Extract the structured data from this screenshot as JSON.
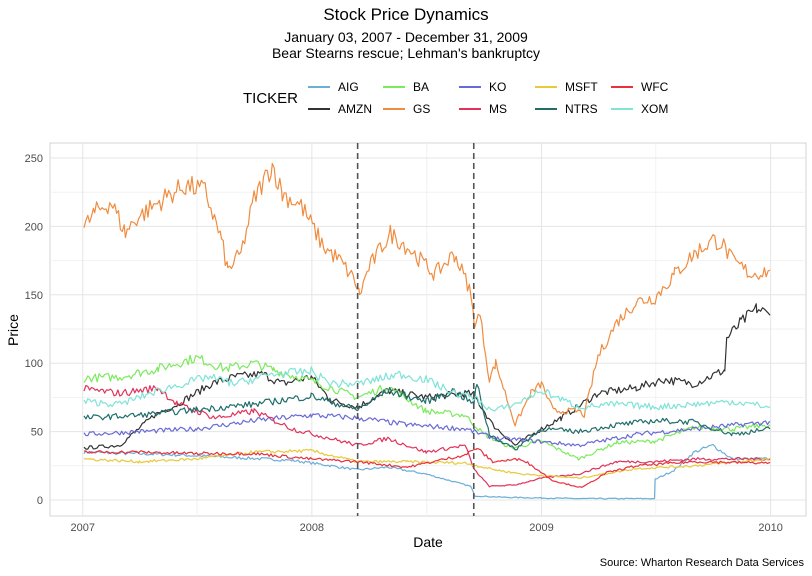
{
  "chart_data": {
    "type": "line",
    "title": "Stock Price Dynamics",
    "subtitle_line1": "January 03, 2007 - December 31, 2009",
    "subtitle_line2": "Bear Stearns rescue; Lehman's bankruptcy",
    "xlabel": "Date",
    "ylabel": "Price",
    "caption": "Source: Wharton Research Data Services",
    "legend_title": "TICKER",
    "legend_position": "top",
    "grid": true,
    "xlim": [
      "2007-01-03",
      "2009-12-31"
    ],
    "ylim": [
      -12,
      262
    ],
    "x_ticks": [
      "2007",
      "2008",
      "2009",
      "2010"
    ],
    "y_ticks": [
      0,
      50,
      100,
      150,
      200,
      250
    ],
    "event_lines": [
      "2008-03-14",
      "2008-09-15"
    ],
    "series": [
      {
        "name": "AIG",
        "color": "#6baed6",
        "points": [
          [
            "2007-01-03",
            35
          ],
          [
            "2007-03-15",
            34
          ],
          [
            "2007-06-01",
            33
          ],
          [
            "2007-09-01",
            31
          ],
          [
            "2007-12-01",
            29
          ],
          [
            "2008-02-01",
            25
          ],
          [
            "2008-03-14",
            22
          ],
          [
            "2008-05-01",
            24
          ],
          [
            "2008-07-01",
            19
          ],
          [
            "2008-09-10",
            10
          ],
          [
            "2008-09-17",
            3
          ],
          [
            "2008-11-01",
            2
          ],
          [
            "2009-01-01",
            1.5
          ],
          [
            "2009-03-01",
            1
          ],
          [
            "2009-06-30",
            1
          ],
          [
            "2009-07-01",
            15
          ],
          [
            "2009-08-01",
            22
          ],
          [
            "2009-09-01",
            35
          ],
          [
            "2009-10-01",
            40
          ],
          [
            "2009-11-01",
            30
          ],
          [
            "2009-12-31",
            30
          ]
        ]
      },
      {
        "name": "AMZN",
        "color": "#333333",
        "points": [
          [
            "2007-01-03",
            38
          ],
          [
            "2007-03-01",
            40
          ],
          [
            "2007-04-25",
            62
          ],
          [
            "2007-06-01",
            70
          ],
          [
            "2007-07-25",
            85
          ],
          [
            "2007-09-01",
            90
          ],
          [
            "2007-10-15",
            92
          ],
          [
            "2007-11-15",
            85
          ],
          [
            "2007-12-31",
            90
          ],
          [
            "2008-01-31",
            73
          ],
          [
            "2008-03-14",
            68
          ],
          [
            "2008-05-01",
            80
          ],
          [
            "2008-07-01",
            75
          ],
          [
            "2008-09-01",
            78
          ],
          [
            "2008-09-15",
            77
          ],
          [
            "2008-10-15",
            55
          ],
          [
            "2008-11-20",
            40
          ],
          [
            "2009-01-01",
            52
          ],
          [
            "2009-02-01",
            60
          ],
          [
            "2009-04-01",
            78
          ],
          [
            "2009-06-01",
            82
          ],
          [
            "2009-07-15",
            88
          ],
          [
            "2009-09-01",
            85
          ],
          [
            "2009-10-20",
            95
          ],
          [
            "2009-10-23",
            118
          ],
          [
            "2009-11-15",
            130
          ],
          [
            "2009-12-10",
            140
          ],
          [
            "2009-12-31",
            135
          ]
        ]
      },
      {
        "name": "BA",
        "color": "#7bea5d",
        "points": [
          [
            "2007-01-03",
            89
          ],
          [
            "2007-03-01",
            90
          ],
          [
            "2007-05-01",
            96
          ],
          [
            "2007-07-01",
            104
          ],
          [
            "2007-08-15",
            96
          ],
          [
            "2007-10-01",
            100
          ],
          [
            "2007-11-01",
            95
          ],
          [
            "2007-12-31",
            87
          ],
          [
            "2008-03-14",
            75
          ],
          [
            "2008-05-01",
            83
          ],
          [
            "2008-07-01",
            65
          ],
          [
            "2008-09-01",
            62
          ],
          [
            "2008-10-01",
            48
          ],
          [
            "2008-11-15",
            38
          ],
          [
            "2009-01-01",
            43
          ],
          [
            "2009-03-01",
            30
          ],
          [
            "2009-05-01",
            42
          ],
          [
            "2009-07-01",
            43
          ],
          [
            "2009-09-01",
            53
          ],
          [
            "2009-11-01",
            52
          ],
          [
            "2009-12-31",
            55
          ]
        ]
      },
      {
        "name": "GS",
        "color": "#f08c3f",
        "points": [
          [
            "2007-01-03",
            199
          ],
          [
            "2007-01-20",
            210
          ],
          [
            "2007-02-15",
            218
          ],
          [
            "2007-03-10",
            195
          ],
          [
            "2007-03-25",
            205
          ],
          [
            "2007-05-15",
            222
          ],
          [
            "2007-06-15",
            230
          ],
          [
            "2007-07-15",
            226
          ],
          [
            "2007-08-10",
            190
          ],
          [
            "2007-08-20",
            168
          ],
          [
            "2007-09-10",
            180
          ],
          [
            "2007-10-01",
            220
          ],
          [
            "2007-10-30",
            245
          ],
          [
            "2007-11-15",
            224
          ],
          [
            "2007-12-15",
            215
          ],
          [
            "2008-01-20",
            185
          ],
          [
            "2008-02-15",
            175
          ],
          [
            "2008-03-10",
            160
          ],
          [
            "2008-03-17",
            150
          ],
          [
            "2008-04-01",
            170
          ],
          [
            "2008-05-05",
            195
          ],
          [
            "2008-06-01",
            185
          ],
          [
            "2008-07-15",
            165
          ],
          [
            "2008-08-15",
            180
          ],
          [
            "2008-09-08",
            155
          ],
          [
            "2008-09-16",
            130
          ],
          [
            "2008-09-25",
            135
          ],
          [
            "2008-10-10",
            88
          ],
          [
            "2008-10-20",
            100
          ],
          [
            "2008-11-20",
            55
          ],
          [
            "2008-12-15",
            78
          ],
          [
            "2009-01-01",
            85
          ],
          [
            "2009-01-20",
            65
          ],
          [
            "2009-03-01",
            65
          ],
          [
            "2009-03-10",
            62
          ],
          [
            "2009-04-01",
            105
          ],
          [
            "2009-05-01",
            130
          ],
          [
            "2009-06-01",
            145
          ],
          [
            "2009-07-01",
            148
          ],
          [
            "2009-08-01",
            165
          ],
          [
            "2009-09-01",
            180
          ],
          [
            "2009-10-01",
            190
          ],
          [
            "2009-10-15",
            188
          ],
          [
            "2009-11-01",
            175
          ],
          [
            "2009-12-01",
            165
          ],
          [
            "2009-12-31",
            168
          ]
        ]
      },
      {
        "name": "KO",
        "color": "#6a6ad6",
        "points": [
          [
            "2007-01-03",
            48
          ],
          [
            "2007-04-01",
            50
          ],
          [
            "2007-07-01",
            52
          ],
          [
            "2007-10-01",
            58
          ],
          [
            "2007-12-31",
            62
          ],
          [
            "2008-03-14",
            60
          ],
          [
            "2008-06-01",
            55
          ],
          [
            "2008-09-01",
            52
          ],
          [
            "2008-10-20",
            45
          ],
          [
            "2008-12-01",
            44
          ],
          [
            "2009-03-01",
            40
          ],
          [
            "2009-06-01",
            48
          ],
          [
            "2009-09-01",
            52
          ],
          [
            "2009-12-31",
            57
          ]
        ]
      },
      {
        "name": "MS",
        "color": "#e0335b",
        "points": [
          [
            "2007-01-03",
            81
          ],
          [
            "2007-03-01",
            78
          ],
          [
            "2007-05-01",
            82
          ],
          [
            "2007-06-01",
            70
          ],
          [
            "2007-08-01",
            60
          ],
          [
            "2007-10-01",
            65
          ],
          [
            "2007-12-01",
            52
          ],
          [
            "2008-03-14",
            40
          ],
          [
            "2008-05-01",
            45
          ],
          [
            "2008-07-01",
            35
          ],
          [
            "2008-09-01",
            40
          ],
          [
            "2008-09-16",
            22
          ],
          [
            "2008-10-10",
            10
          ],
          [
            "2008-11-20",
            11
          ],
          [
            "2009-01-01",
            16
          ],
          [
            "2009-03-01",
            19
          ],
          [
            "2009-05-01",
            28
          ],
          [
            "2009-07-01",
            28
          ],
          [
            "2009-09-01",
            30
          ],
          [
            "2009-12-31",
            30
          ]
        ]
      },
      {
        "name": "MSFT",
        "color": "#e8c93a",
        "points": [
          [
            "2007-01-03",
            30
          ],
          [
            "2007-04-01",
            28
          ],
          [
            "2007-07-01",
            30
          ],
          [
            "2007-10-01",
            35
          ],
          [
            "2007-12-31",
            36
          ],
          [
            "2008-03-14",
            28
          ],
          [
            "2008-06-01",
            28
          ],
          [
            "2008-09-01",
            27
          ],
          [
            "2008-10-20",
            22
          ],
          [
            "2008-12-01",
            19
          ],
          [
            "2009-03-01",
            16
          ],
          [
            "2009-06-01",
            23
          ],
          [
            "2009-09-01",
            25
          ],
          [
            "2009-12-31",
            30
          ]
        ]
      },
      {
        "name": "NTRS",
        "color": "#1f6e6a",
        "points": [
          [
            "2007-01-03",
            60
          ],
          [
            "2007-04-01",
            62
          ],
          [
            "2007-07-01",
            66
          ],
          [
            "2007-10-01",
            70
          ],
          [
            "2007-12-31",
            76
          ],
          [
            "2008-03-14",
            66
          ],
          [
            "2008-05-01",
            80
          ],
          [
            "2008-07-01",
            72
          ],
          [
            "2008-08-15",
            80
          ],
          [
            "2008-09-15",
            70
          ],
          [
            "2008-09-20",
            85
          ],
          [
            "2008-10-10",
            48
          ],
          [
            "2008-11-20",
            37
          ],
          [
            "2009-01-01",
            52
          ],
          [
            "2009-03-01",
            50
          ],
          [
            "2009-05-01",
            55
          ],
          [
            "2009-07-01",
            58
          ],
          [
            "2009-09-01",
            57
          ],
          [
            "2009-11-01",
            48
          ],
          [
            "2009-12-31",
            52
          ]
        ]
      },
      {
        "name": "WFC",
        "color": "#e8303f",
        "points": [
          [
            "2007-01-03",
            35
          ],
          [
            "2007-04-01",
            35
          ],
          [
            "2007-07-01",
            34
          ],
          [
            "2007-10-01",
            34
          ],
          [
            "2007-12-31",
            30
          ],
          [
            "2008-03-14",
            28
          ],
          [
            "2008-06-01",
            24
          ],
          [
            "2008-09-01",
            33
          ],
          [
            "2008-09-20",
            38
          ],
          [
            "2008-10-15",
            28
          ],
          [
            "2008-12-01",
            30
          ],
          [
            "2009-01-20",
            14
          ],
          [
            "2009-03-06",
            9
          ],
          [
            "2009-04-15",
            20
          ],
          [
            "2009-06-01",
            25
          ],
          [
            "2009-09-01",
            28
          ],
          [
            "2009-12-31",
            27
          ]
        ]
      },
      {
        "name": "XOM",
        "color": "#7fe3d6",
        "points": [
          [
            "2007-01-03",
            72
          ],
          [
            "2007-03-01",
            70
          ],
          [
            "2007-05-01",
            80
          ],
          [
            "2007-07-20",
            90
          ],
          [
            "2007-09-01",
            85
          ],
          [
            "2007-10-30",
            92
          ],
          [
            "2007-12-31",
            94
          ],
          [
            "2008-02-01",
            85
          ],
          [
            "2008-03-14",
            85
          ],
          [
            "2008-05-20",
            92
          ],
          [
            "2008-07-01",
            88
          ],
          [
            "2008-08-15",
            78
          ],
          [
            "2008-09-15",
            75
          ],
          [
            "2008-10-15",
            65
          ],
          [
            "2008-11-20",
            70
          ],
          [
            "2009-01-01",
            80
          ],
          [
            "2009-03-01",
            68
          ],
          [
            "2009-05-01",
            70
          ],
          [
            "2009-07-01",
            68
          ],
          [
            "2009-09-01",
            70
          ],
          [
            "2009-11-01",
            72
          ],
          [
            "2009-12-31",
            68
          ]
        ]
      }
    ]
  }
}
